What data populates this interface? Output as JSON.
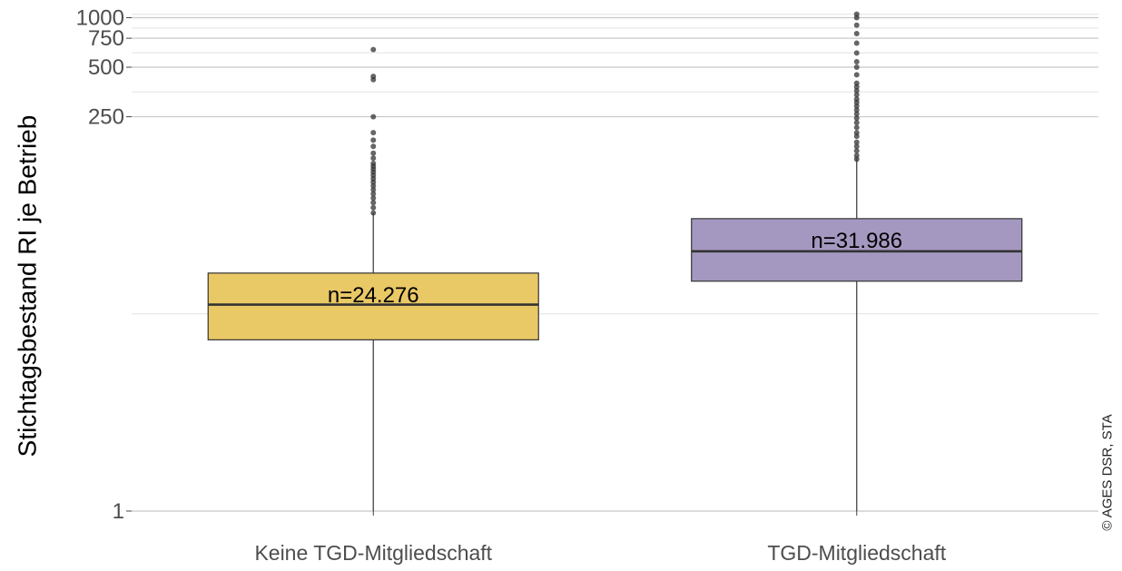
{
  "chart_data": {
    "type": "box",
    "ylabel": "Stichtagsbestand RI je Betrieb",
    "yscale": "log",
    "yticks": [
      {
        "value": 1,
        "label": "1"
      },
      {
        "value": 250,
        "label": "250"
      },
      {
        "value": 500,
        "label": "500"
      },
      {
        "value": 750,
        "label": "750"
      },
      {
        "value": 1000,
        "label": "1000"
      }
    ],
    "ylim": [
      1,
      1100
    ],
    "grid": true,
    "groups": [
      {
        "category": "Keine TGD-Mitgliedschaft",
        "n_label": "n=24.276",
        "color": "#E9C866",
        "q1": 11,
        "median": 18,
        "q3": 28,
        "whisker_low": 1,
        "whisker_high": 65,
        "outliers": [
          65,
          70,
          75,
          80,
          85,
          90,
          95,
          100,
          105,
          110,
          115,
          120,
          125,
          130,
          140,
          150,
          165,
          180,
          200,
          250,
          420,
          440,
          640
        ]
      },
      {
        "category": "TGD-Mitgliedschaft",
        "n_label": "n=31.986",
        "color": "#A598C0",
        "q1": 25,
        "median": 38,
        "q3": 60,
        "whisker_low": 1,
        "whisker_high": 138,
        "outliers": [
          138,
          145,
          155,
          165,
          175,
          190,
          200,
          215,
          230,
          245,
          260,
          275,
          290,
          305,
          320,
          340,
          360,
          380,
          400,
          450,
          500,
          540,
          610,
          700,
          800,
          900,
          1000,
          1050
        ]
      }
    ]
  },
  "credit": "© AGES DSR, STA"
}
